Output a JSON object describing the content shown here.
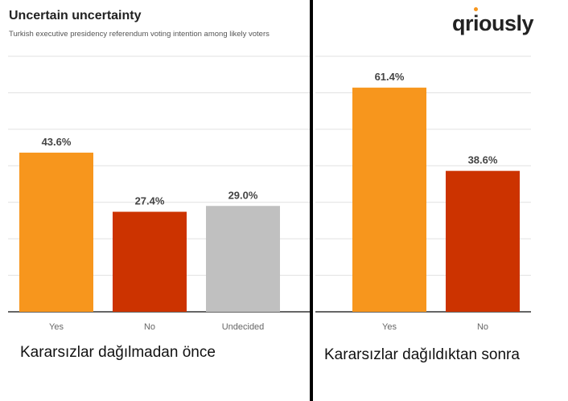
{
  "title": "Uncertain uncertainty",
  "subtitle": "Turkish executive presidency referendum voting intention among likely voters",
  "logo": "qriously",
  "captions": {
    "left": "Kararsızlar dağılmadan önce",
    "right": "Kararsızlar dağıldıktan sonra"
  },
  "colors": {
    "yes": "#f7961d",
    "no": "#cc3300",
    "undecided": "#c0c0c0",
    "grid": "#e0e0e0",
    "axis": "#333333",
    "label": "#666666"
  },
  "chart_data": [
    {
      "type": "bar",
      "categories": [
        "Yes",
        "No",
        "Undecided"
      ],
      "values": [
        43.6,
        27.4,
        29.0
      ],
      "value_labels": [
        "43.6%",
        "27.4%",
        "29.0%"
      ],
      "bar_colors": [
        "#f7961d",
        "#cc3300",
        "#c0c0c0"
      ],
      "ylim": [
        0,
        70
      ],
      "grid": true
    },
    {
      "type": "bar",
      "categories": [
        "Yes",
        "No"
      ],
      "values": [
        61.4,
        38.6
      ],
      "value_labels": [
        "61.4%",
        "38.6%"
      ],
      "bar_colors": [
        "#f7961d",
        "#cc3300"
      ],
      "ylim": [
        0,
        70
      ],
      "grid": true
    }
  ]
}
